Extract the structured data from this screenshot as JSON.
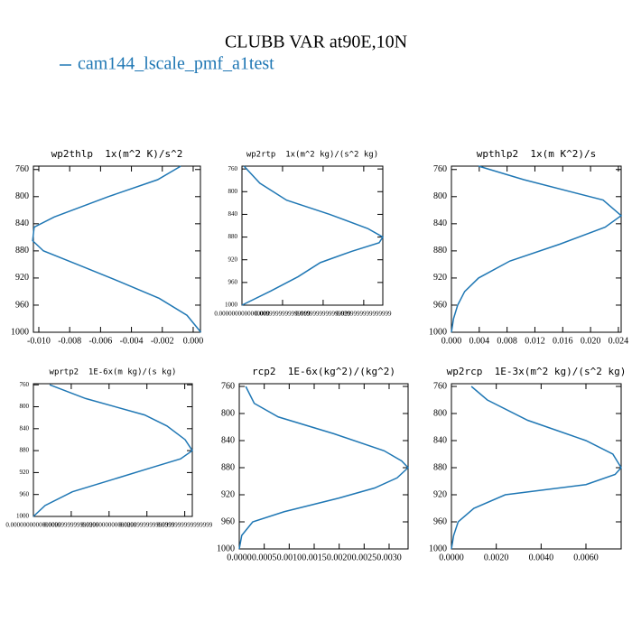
{
  "title": "CLUBB VAR at90E,10N",
  "legend": {
    "name": "cam144_lscale_pmf_a1test",
    "color": "#1f77b4"
  },
  "chart_data": [
    {
      "type": "line",
      "title": "wp2thlp  1x(m^2 K)/s^2",
      "levels": [
        755,
        775,
        800,
        830,
        845,
        865,
        880,
        900,
        925,
        950,
        975,
        1000
      ],
      "values": [
        -0.0008,
        -0.0023,
        -0.0055,
        -0.009,
        -0.0103,
        -0.0104,
        -0.0097,
        -0.0075,
        -0.0048,
        -0.0022,
        -0.0004,
        0.0005
      ],
      "xlim": [
        -0.01035,
        0.00047
      ],
      "xticks": [
        {
          "value": -0.01,
          "label": "-0.010"
        },
        {
          "value": -0.008,
          "label": "-0.008"
        },
        {
          "value": -0.006,
          "label": "-0.006"
        },
        {
          "value": -0.004,
          "label": "-0.004"
        },
        {
          "value": -0.002,
          "label": "-0.002"
        },
        {
          "value": 0,
          "label": "0.000"
        }
      ],
      "ylim": [
        1000,
        755
      ],
      "yticks": [
        760,
        800,
        840,
        880,
        920,
        960,
        1000
      ]
    },
    {
      "type": "line",
      "title": "wp2rtp  1x(m^2 kg)/(s^2 kg)",
      "levels": [
        755,
        785,
        815,
        840,
        865,
        880,
        890,
        905,
        925,
        950,
        975,
        1000
      ],
      "values": [
        0.0005,
        0.0044,
        0.011,
        0.0216,
        0.031,
        0.0347,
        0.0338,
        0.0271,
        0.0193,
        0.0138,
        0.0071,
        0
      ],
      "xlim": [
        0,
        0.0347
      ],
      "xticks": [
        {
          "value": 0,
          "label": "0.0000000000000000"
        },
        {
          "value": 0.01,
          "label": "0.0099999999999999"
        },
        {
          "value": 0.02,
          "label": "0.0199999999999999"
        },
        {
          "value": 0.03,
          "label": "0.0299999999999999"
        }
      ],
      "ylim": [
        1000,
        755
      ],
      "yticks": [
        760,
        800,
        840,
        880,
        920,
        960,
        1000
      ]
    },
    {
      "type": "line",
      "title": "wpthlp2  1x(m K^2)/s",
      "levels": [
        755,
        775,
        805,
        828,
        845,
        870,
        895,
        920,
        940,
        960,
        980,
        1000
      ],
      "values": [
        0.0039,
        0.0104,
        0.0218,
        0.0244,
        0.0221,
        0.0156,
        0.0084,
        0.0039,
        0.0019,
        0.0009,
        0.0003,
        0
      ],
      "xlim": [
        0,
        0.0244
      ],
      "xticks": [
        {
          "value": 0,
          "label": "0.000"
        },
        {
          "value": 0.004,
          "label": "0.004"
        },
        {
          "value": 0.008,
          "label": "0.008"
        },
        {
          "value": 0.012,
          "label": "0.012"
        },
        {
          "value": 0.016,
          "label": "0.016"
        },
        {
          "value": 0.02,
          "label": "0.020"
        },
        {
          "value": 0.024,
          "label": "0.024"
        }
      ],
      "ylim": [
        1000,
        755
      ],
      "yticks": [
        760,
        800,
        840,
        880,
        920,
        960,
        1000
      ]
    },
    {
      "type": "line",
      "title": "wprtp2  1E-6x(m kg)/(s kg)",
      "levels": [
        760,
        785,
        815,
        835,
        860,
        880,
        895,
        910,
        930,
        955,
        980,
        1000
      ],
      "values": [
        0.0043,
        0.0138,
        0.0294,
        0.0353,
        0.0401,
        0.042,
        0.0389,
        0.0317,
        0.0222,
        0.0103,
        0.0031,
        0
      ],
      "xlim": [
        0,
        0.042
      ],
      "xticks": [
        {
          "value": 0,
          "label": "0.0000000000000000"
        },
        {
          "value": 0.01,
          "label": "0.0099999999999999"
        },
        {
          "value": 0.02,
          "label": "0.0200000000000000"
        },
        {
          "value": 0.03,
          "label": "0.0299999999999999"
        },
        {
          "value": 0.04,
          "label": "0.0399999999999999"
        }
      ],
      "ylim": [
        1000,
        758
      ],
      "yticks": [
        760,
        800,
        840,
        880,
        920,
        960,
        1000
      ]
    },
    {
      "type": "line",
      "title": "rcp2  1E-6x(kg^2)/(kg^2)",
      "levels": [
        760,
        785,
        805,
        830,
        855,
        870,
        880,
        895,
        910,
        925,
        945,
        960,
        980,
        1000
      ],
      "values": [
        0.00013,
        0.0003,
        0.00078,
        0.0019,
        0.0029,
        0.00325,
        0.00338,
        0.00316,
        0.00271,
        0.00199,
        0.0009,
        0.00027,
        5e-05,
        0
      ],
      "xlim": [
        0,
        0.00338
      ],
      "xticks": [
        {
          "value": 0,
          "label": "0.0000"
        },
        {
          "value": 0.0005,
          "label": "0.0005"
        },
        {
          "value": 0.001,
          "label": "0.0010"
        },
        {
          "value": 0.0015,
          "label": "0.0015"
        },
        {
          "value": 0.002,
          "label": "0.0020"
        },
        {
          "value": 0.0025,
          "label": "0.0025"
        },
        {
          "value": 0.003,
          "label": "0.0030"
        }
      ],
      "ylim": [
        1000,
        756
      ],
      "yticks": [
        760,
        800,
        840,
        880,
        920,
        960,
        1000
      ]
    },
    {
      "type": "line",
      "title": "wp2rcp  1E-3x(m^2 kg)/(s^2 kg)",
      "levels": [
        760,
        780,
        810,
        840,
        860,
        880,
        890,
        905,
        920,
        940,
        960,
        980,
        1000
      ],
      "values": [
        0.00089,
        0.0016,
        0.0034,
        0.006,
        0.0072,
        0.00757,
        0.0073,
        0.006,
        0.0024,
        0.001,
        0.0003,
        0.0001,
        0
      ],
      "xlim": [
        0,
        0.00757
      ],
      "xticks": [
        {
          "value": 0,
          "label": "0.0000"
        },
        {
          "value": 0.002,
          "label": "0.0020"
        },
        {
          "value": 0.004,
          "label": "0.0040"
        },
        {
          "value": 0.006,
          "label": "0.0060"
        }
      ],
      "ylim": [
        1000,
        756
      ],
      "yticks": [
        760,
        800,
        840,
        880,
        920,
        960,
        1000
      ]
    }
  ]
}
